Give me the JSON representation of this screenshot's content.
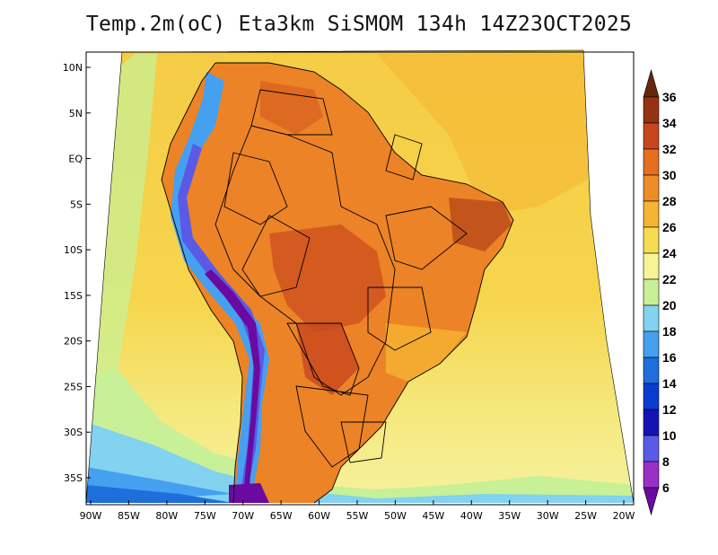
{
  "title": "Temp.2m(oC) Eta3km SiSMOM 134h 14Z23OCT2025",
  "map": {
    "region": "South America",
    "variable": "2 m temperature",
    "units": "oC",
    "lat_ticks": [
      "10N",
      "5N",
      "EQ",
      "5S",
      "10S",
      "15S",
      "20S",
      "25S",
      "30S",
      "35S"
    ],
    "lon_ticks": [
      "90W",
      "85W",
      "80W",
      "75W",
      "70W",
      "65W",
      "60W",
      "55W",
      "50W",
      "45W",
      "40W",
      "35W",
      "30W",
      "25W",
      "20W"
    ],
    "lat_values": [
      10,
      5,
      0,
      -5,
      -10,
      -15,
      -20,
      -25,
      -30,
      -35
    ],
    "lon_values": [
      -90,
      -85,
      -80,
      -75,
      -70,
      -65,
      -60,
      -55,
      -50,
      -45,
      -40,
      -35,
      -30,
      -25,
      -20
    ]
  },
  "colorbar": {
    "levels": [
      "6",
      "8",
      "10",
      "12",
      "14",
      "16",
      "18",
      "20",
      "22",
      "24",
      "26",
      "28",
      "30",
      "32",
      "34",
      "36"
    ],
    "colors": [
      "#6a0aa0",
      "#9a2fc6",
      "#5a5ae6",
      "#1414b4",
      "#0a3cd2",
      "#1e6edc",
      "#46a0f0",
      "#82d2f0",
      "#c8f096",
      "#f5f596",
      "#f5dc50",
      "#f5b432",
      "#f08c28",
      "#e66e1e",
      "#c8461e",
      "#963214",
      "#64280a"
    ]
  },
  "palette": {
    "ocean_warm": "#f6d24a",
    "ocean_mid": "#f5b432",
    "land_hot": "#e8741e",
    "land_warm": "#f08c28",
    "land_very_hot": "#b94a1a",
    "andes_cold": "#5a5ae6",
    "andes_coldest": "#6a0aa0",
    "south_ocean_cool": "#82d2f0",
    "south_ocean_cold": "#46a0f0"
  }
}
